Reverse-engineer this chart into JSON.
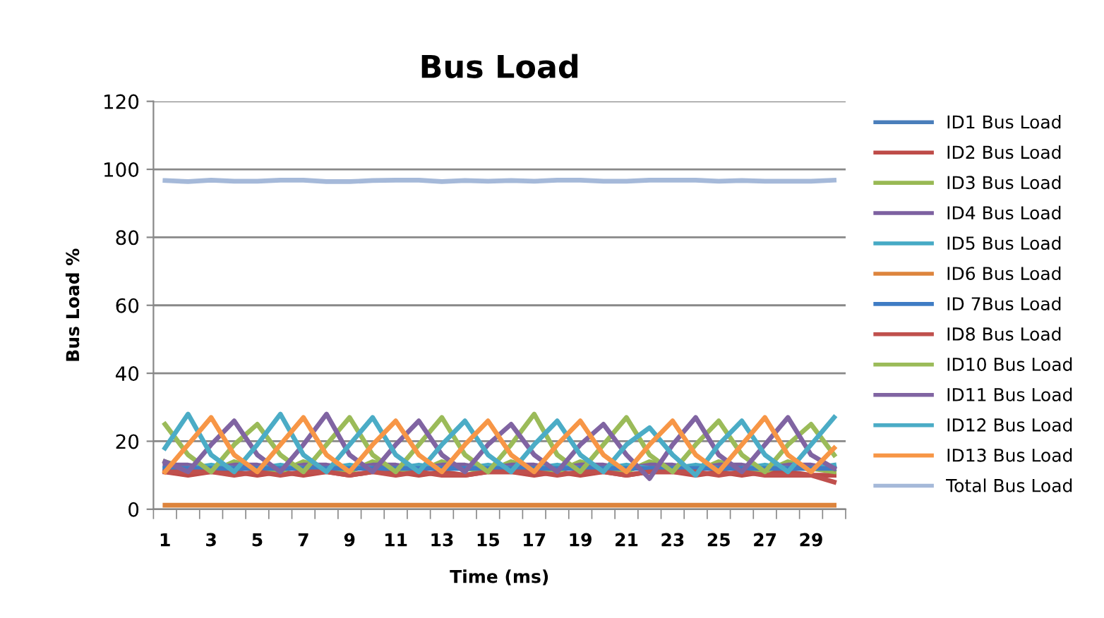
{
  "chart_data": {
    "type": "line",
    "title": "Bus Load",
    "xlabel": "Time (ms)",
    "ylabel": "Bus Load %",
    "categories": [
      "1",
      null,
      "3",
      null,
      "5",
      null,
      "7",
      null,
      "9",
      null,
      "11",
      null,
      "13",
      null,
      "15",
      null,
      "17",
      null,
      "19",
      null,
      "21",
      null,
      "23",
      null,
      "25",
      null,
      "27",
      null,
      "29",
      null
    ],
    "ylim": [
      0,
      120
    ],
    "yticks": [
      0,
      20,
      40,
      60,
      80,
      100,
      120
    ],
    "grid": "y",
    "legend": "right",
    "marker": "none",
    "line_style": "solid",
    "series": [
      {
        "name": "ID1 Bus Load",
        "color": "#4a7ebb",
        "values": [
          null,
          null,
          null,
          null,
          null,
          null,
          null,
          null,
          null,
          null,
          null,
          null,
          null,
          null,
          null,
          null,
          null,
          null,
          null,
          null,
          null,
          null,
          null,
          null,
          null,
          null,
          null,
          null,
          null,
          null
        ]
      },
      {
        "name": "ID2 Bus Load",
        "color": "#be4b48",
        "values": [
          11,
          10,
          11,
          11,
          10,
          11,
          10,
          11,
          10,
          11,
          11,
          10,
          11,
          10,
          11,
          11,
          10,
          11,
          10,
          11,
          10,
          11,
          11,
          10,
          11,
          10,
          11,
          11,
          10,
          10
        ]
      },
      {
        "name": "ID3 Bus Load",
        "color": "#98b954",
        "values": [
          14,
          12,
          11,
          14,
          12,
          11,
          14,
          12,
          11,
          14,
          12,
          11,
          14,
          12,
          11,
          14,
          12,
          11,
          14,
          12,
          11,
          14,
          12,
          11,
          14,
          12,
          11,
          14,
          12,
          11
        ]
      },
      {
        "name": "ID4 Bus Load",
        "color": "#7d60a0",
        "values": [
          13,
          13,
          12,
          13,
          13,
          12,
          13,
          13,
          12,
          13,
          13,
          12,
          13,
          13,
          12,
          13,
          13,
          12,
          13,
          13,
          12,
          13,
          13,
          12,
          13,
          13,
          12,
          13,
          13,
          12
        ]
      },
      {
        "name": "ID5 Bus Load",
        "color": "#46aac5",
        "values": [
          12,
          12,
          13,
          12,
          12,
          13,
          12,
          12,
          13,
          12,
          12,
          13,
          12,
          12,
          13,
          12,
          12,
          13,
          12,
          12,
          13,
          12,
          12,
          13,
          12,
          12,
          13,
          12,
          12,
          13
        ]
      },
      {
        "name": "ID6 Bus Load",
        "color": "#dd843c",
        "values": [
          1.2,
          1.2,
          1.2,
          1.2,
          1.2,
          1.2,
          1.2,
          1.2,
          1.2,
          1.2,
          1.2,
          1.2,
          1.2,
          1.2,
          1.2,
          1.2,
          1.2,
          1.2,
          1.2,
          1.2,
          1.2,
          1.2,
          1.2,
          1.2,
          1.2,
          1.2,
          1.2,
          1.2,
          1.2,
          1.2
        ]
      },
      {
        "name": "ID 7Bus Load",
        "color": "#3f7cc4",
        "values": [
          12,
          12,
          12,
          12,
          12,
          12,
          12,
          12,
          12,
          12,
          12,
          12,
          12,
          12,
          12,
          12,
          12,
          12,
          12,
          12,
          12,
          12,
          12,
          12,
          12,
          12,
          12,
          12,
          12,
          12
        ]
      },
      {
        "name": "ID8 Bus Load",
        "color": "#c0504d",
        "values": [
          11,
          11,
          11,
          10,
          11,
          10,
          11,
          11,
          10,
          11,
          10,
          11,
          10,
          10,
          11,
          11,
          11,
          10,
          11,
          11,
          10,
          11,
          11,
          11,
          10,
          11,
          10,
          10,
          10,
          8
        ]
      },
      {
        "name": "ID10 Bus Load",
        "color": "#9bbb59",
        "values": [
          25,
          16,
          11,
          19,
          25,
          16,
          11,
          19,
          27,
          16,
          11,
          19,
          27,
          16,
          11,
          19,
          28,
          16,
          11,
          19,
          27,
          16,
          11,
          19,
          26,
          16,
          11,
          19,
          25,
          16
        ]
      },
      {
        "name": "ID11 Bus Load",
        "color": "#8064a2",
        "values": [
          14,
          11,
          19,
          26,
          16,
          11,
          19,
          28,
          16,
          11,
          19,
          26,
          16,
          11,
          19,
          25,
          16,
          11,
          19,
          25,
          16,
          9,
          19,
          27,
          16,
          11,
          19,
          27,
          16,
          12
        ]
      },
      {
        "name": "ID12 Bus Load",
        "color": "#4bacc6",
        "values": [
          18,
          28,
          16,
          11,
          19,
          28,
          16,
          11,
          19,
          27,
          16,
          11,
          19,
          26,
          16,
          11,
          19,
          26,
          16,
          11,
          19,
          24,
          16,
          10,
          19,
          26,
          16,
          11,
          19,
          27
        ]
      },
      {
        "name": "ID13 Bus Load",
        "color": "#f79646",
        "values": [
          11,
          19,
          27,
          16,
          11,
          19,
          27,
          16,
          11,
          19,
          26,
          16,
          11,
          19,
          26,
          16,
          11,
          19,
          26,
          16,
          11,
          19,
          26,
          16,
          11,
          19,
          27,
          16,
          11,
          18
        ]
      },
      {
        "name": "Total Bus Load",
        "color": "#a5b9d9",
        "values": [
          96.7,
          96.4,
          96.8,
          96.5,
          96.5,
          96.8,
          96.8,
          96.4,
          96.4,
          96.7,
          96.8,
          96.8,
          96.4,
          96.7,
          96.5,
          96.7,
          96.5,
          96.8,
          96.8,
          96.5,
          96.5,
          96.8,
          96.8,
          96.8,
          96.5,
          96.7,
          96.5,
          96.5,
          96.5,
          96.8
        ]
      }
    ]
  }
}
